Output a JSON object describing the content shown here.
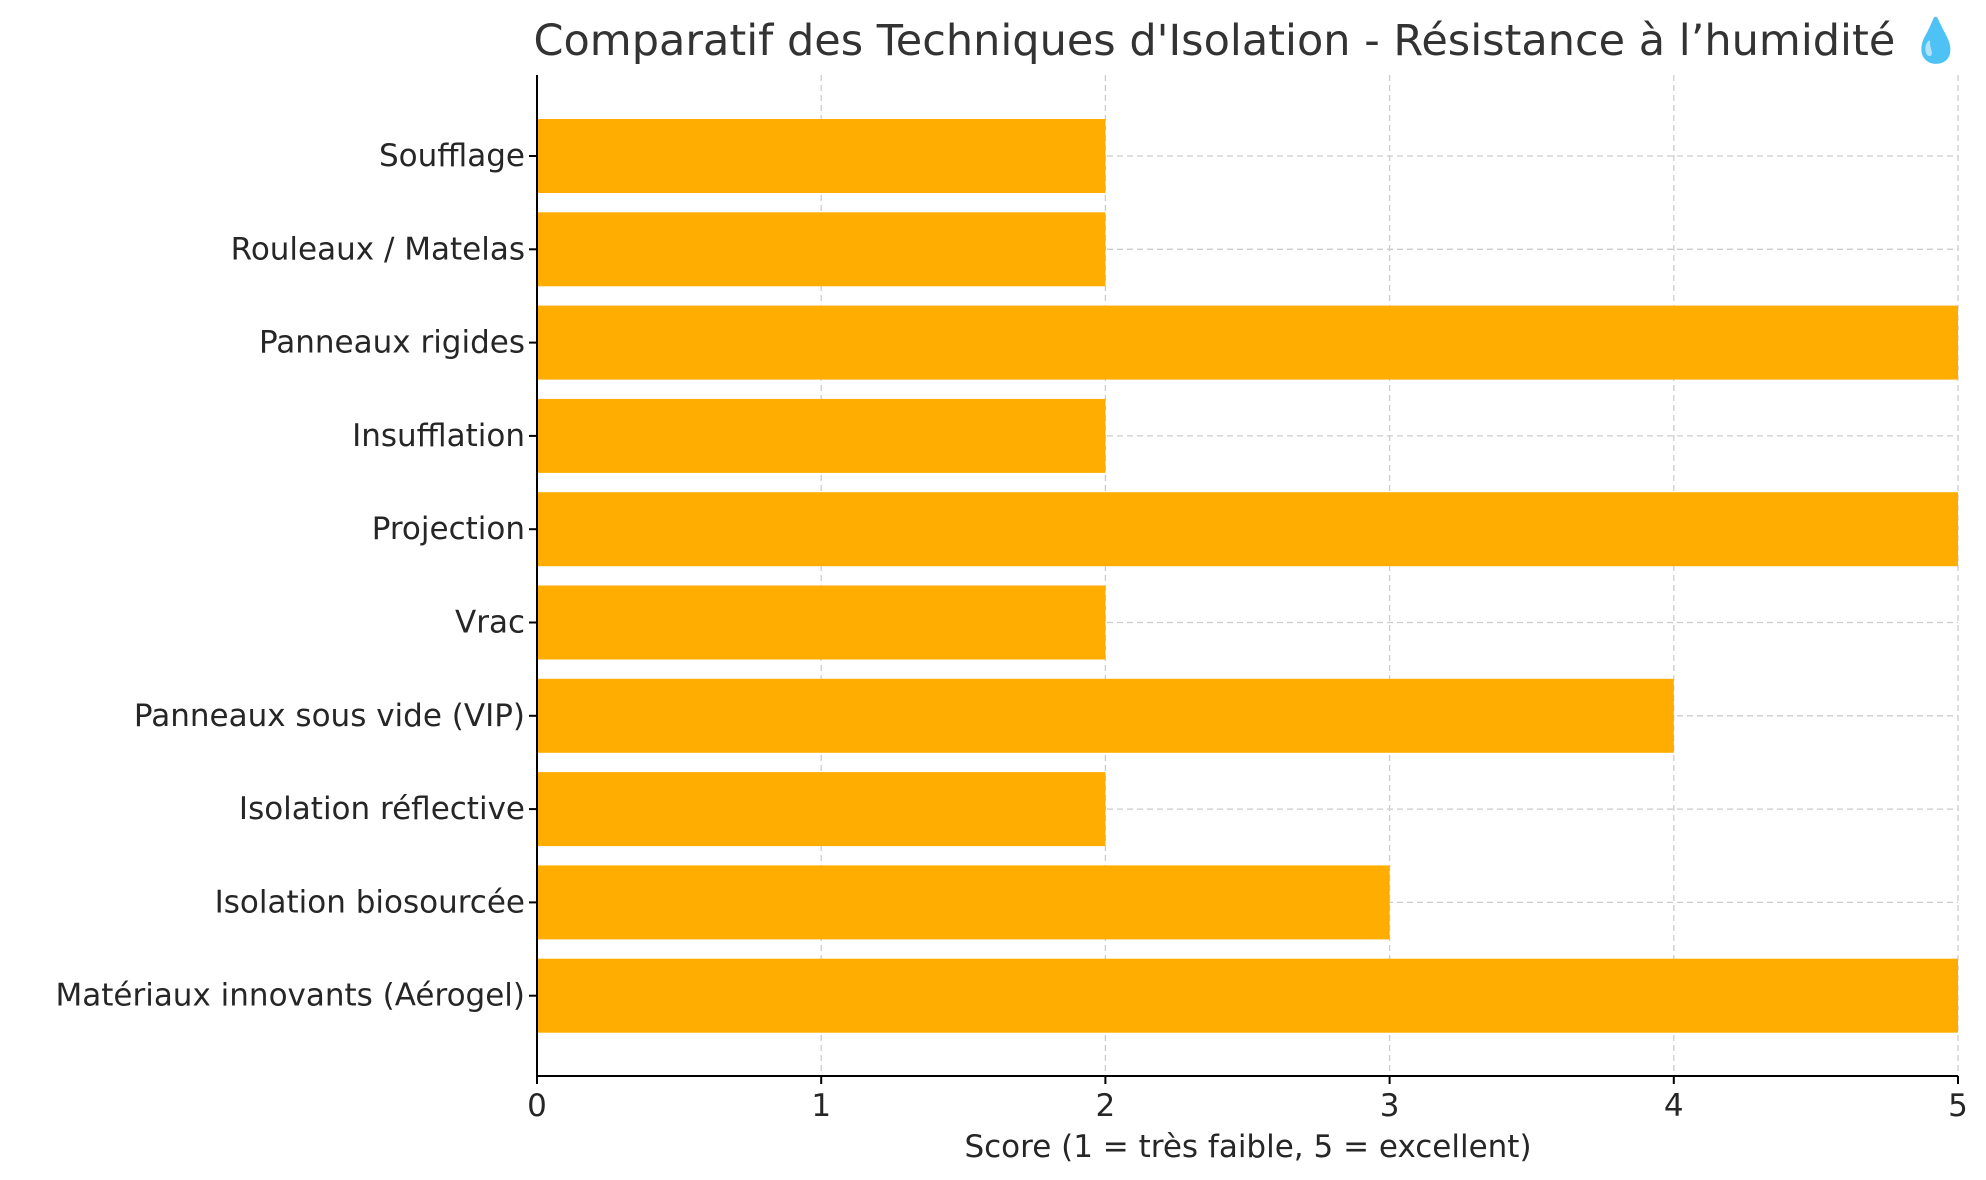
{
  "chart_data": {
    "type": "bar",
    "orientation": "horizontal",
    "title": "Comparatif des Techniques d'Isolation - Résistance à l’humidité 💧",
    "xlabel": "Score (1 = très faible, 5 = excellent)",
    "ylabel": "",
    "xlim": [
      0,
      5
    ],
    "xticks": [
      "0",
      "1",
      "2",
      "3",
      "4",
      "5"
    ],
    "grid": true,
    "bar_color": "#FFAD00",
    "categories": [
      "Soufflage",
      "Rouleaux / Matelas",
      "Panneaux rigides",
      "Insufflation",
      "Projection",
      "Vrac",
      "Panneaux sous vide (VIP)",
      "Isolation réflective",
      "Isolation biosourcée",
      "Matériaux innovants (Aérogel)"
    ],
    "values": [
      2,
      2,
      5,
      2,
      5,
      2,
      4,
      2,
      3,
      5
    ]
  }
}
